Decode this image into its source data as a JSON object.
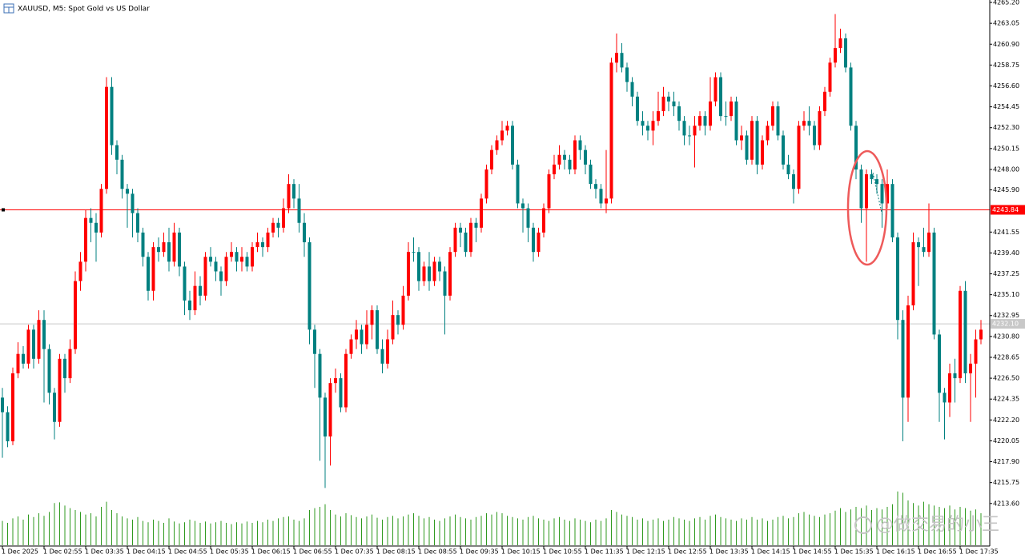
{
  "chart_data": {
    "type": "candlestick",
    "title": "XAUUSD, M5:  Spot Gold vs US Dollar",
    "watermark": "@做交易的小王",
    "up_color": "#ff0000",
    "down_color": "#008080",
    "ylim": [
      4209.3,
      4265.45
    ],
    "yticks": [
      {
        "value": 4265.2,
        "label": "4265.20"
      },
      4263.05,
      {
        "value": 4260.9,
        "label": "4260.90"
      },
      4258.75,
      {
        "value": 4256.6,
        "label": "4256.60"
      },
      4254.45,
      {
        "value": 4252.3,
        "label": "4252.30"
      },
      4250.15,
      {
        "value": 4248,
        "label": "4248.00"
      },
      {
        "value": 4245.9,
        "label": "4245.90"
      },
      4241.55,
      {
        "value": 4239.4,
        "label": "4239.40"
      },
      4237.25,
      {
        "value": 4235.1,
        "label": "4235.10"
      },
      4232.95,
      {
        "value": 4230.8,
        "label": "4230.80"
      },
      4228.65,
      {
        "value": 4226.5,
        "label": "4226.50"
      },
      4224.35,
      {
        "value": 4222.2,
        "label": "4222.20"
      },
      4220.05,
      {
        "value": 4217.9,
        "label": "4217.90"
      },
      4215.75,
      {
        "value": 4213.6,
        "label": "4213.60"
      }
    ],
    "xticks": [
      "1 Dec 2025",
      "1 Dec 02:55",
      "1 Dec 03:35",
      "1 Dec 04:15",
      "1 Dec 04:55",
      "1 Dec 05:35",
      "1 Dec 06:15",
      "1 Dec 06:55",
      "1 Dec 07:35",
      "1 Dec 08:15",
      "1 Dec 08:55",
      "1 Dec 09:35",
      "1 Dec 10:15",
      "1 Dec 10:55",
      "1 Dec 11:35",
      "1 Dec 12:15",
      "1 Dec 12:55",
      "1 Dec 13:35",
      "1 Dec 14:15",
      "1 Dec 14:55",
      "1 Dec 15:35",
      "1 Dec 16:15",
      "1 Dec 16:55",
      "1 Dec 17:35"
    ],
    "price_lines": [
      {
        "value": 4243.84,
        "color": "#ff0000"
      },
      {
        "value": {
          "value": 4232.1,
          "label": "4232.10"
        },
        "color": "#c8c8c8"
      }
    ],
    "open": [
      4224.5,
      4223,
      4220,
      4227,
      4229,
      4228,
      4231.5,
      4228.5,
      4232.5,
      4229.5,
      4225,
      4222,
      4228.5,
      4226.5,
      4229.5,
      4236.5,
      4238.5,
      4243,
      4242.5,
      4241.5,
      4246,
      4256.5,
      4250.5,
      4249,
      4246,
      4245.5,
      4243.5,
      4241.5,
      4239,
      4235.5,
      4240,
      4239.5,
      4240.5,
      4238.5,
      4241.5,
      4238,
      4234.5,
      4233.5,
      4236,
      4235,
      4239,
      4238.5,
      4237.5,
      4236.5,
      4239,
      4239.5,
      4238.5,
      4239,
      4238,
      4240,
      4240.5,
      4240,
      4241.5,
      4242.5,
      4242,
      4244,
      4246.5,
      4245,
      4242.5,
      4240.5,
      4231.5,
      4229,
      4224.5,
      4220.5,
      4226,
      4226.5,
      4223.5,
      4229,
      4230.5,
      4231.5,
      4230,
      4232,
      4233.5,
      4229.5,
      4228,
      4230.5,
      4233,
      4232,
      4235,
      4239.5,
      4239.5,
      4236.5,
      4238,
      4236.5,
      4238.5,
      4237.5,
      4235,
      4239.5,
      4242,
      4241.5,
      4239.5,
      4242.5,
      4242,
      4245,
      4248,
      4250,
      4251,
      4252,
      4252.5,
      4248.5,
      4244.5,
      4244,
      4242,
      4239.5,
      4241.5,
      4244,
      4247.5,
      4248.5,
      4249.5,
      4249,
      4248,
      4251,
      4250,
      4248.5,
      4246.5,
      4246,
      4244.5,
      4245,
      4259,
      4260,
      4258.5,
      4257,
      4255.5,
      4253,
      4252.5,
      4252,
      4253,
      4254,
      4255.5,
      4255,
      4254.5,
      4253,
      4251.5,
      4251.5,
      4252.5,
      4253.5,
      4252.5,
      4255,
      4257.5,
      4253.5,
      4253.5,
      4255,
      4251,
      4251.5,
      4249,
      4253,
      4248.5,
      4251,
      4252.5,
      4254.5,
      4251.5,
      4248.5,
      4247.5,
      4246,
      4252.5,
      4253,
      4252.5,
      4250.5,
      4254,
      4256,
      4259,
      4260.5,
      4261.5,
      4258.5,
      4252.5,
      4248,
      4244,
      4247.5,
      4247,
      4246.5,
      4244.5,
      4246.5,
      4241,
      4232.5,
      4224.5,
      4234,
      4240.5,
      4240,
      4239.5,
      4241.5,
      4231,
      4225,
      4224,
      4227,
      4226.5,
      4235.5,
      4227,
      4228,
      4230.5
    ],
    "high": [
      4225.5,
      4223.6,
      4227.6,
      4230.2,
      4229.8,
      4232,
      4232,
      4233.5,
      4233.5,
      4230,
      4225.5,
      4229,
      4229,
      4230.5,
      4237.5,
      4239.5,
      4243.8,
      4244,
      4243.5,
      4246.5,
      4257.5,
      4257.5,
      4251,
      4249.5,
      4246.5,
      4246,
      4244,
      4242,
      4239.5,
      4240.5,
      4241,
      4241.5,
      4242,
      4242.5,
      4242,
      4238.5,
      4235.5,
      4237.5,
      4237,
      4239.5,
      4240,
      4239,
      4238,
      4239.5,
      4240.5,
      4240,
      4240,
      4239.5,
      4240.5,
      4241.5,
      4241,
      4242,
      4243,
      4243,
      4245,
      4247.5,
      4247,
      4246.5,
      4243.5,
      4241,
      4232,
      4229.5,
      4225,
      4226.5,
      4227.5,
      4227,
      4229.5,
      4231,
      4232.5,
      4232,
      4233.5,
      4234,
      4234,
      4230.5,
      4231.5,
      4234.5,
      4233.5,
      4236,
      4240.5,
      4241,
      4240,
      4238.5,
      4239.5,
      4239,
      4239,
      4238,
      4240,
      4242.5,
      4242.5,
      4242,
      4243,
      4243,
      4245.5,
      4248.5,
      4250.5,
      4251.5,
      4253,
      4253,
      4253,
      4249,
      4245,
      4244.5,
      4242.5,
      4242,
      4244.5,
      4248,
      4249.5,
      4250.5,
      4250,
      4249.5,
      4251.5,
      4251.5,
      4250.5,
      4249,
      4247,
      4246.5,
      4250,
      4259.5,
      4262,
      4261,
      4259,
      4257.5,
      4256,
      4254,
      4253,
      4254,
      4256,
      4256.5,
      4256,
      4256,
      4255,
      4253.5,
      4252.5,
      4253.5,
      4254,
      4254,
      4257.5,
      4258,
      4258,
      4255,
      4255.5,
      4255.5,
      4252.5,
      4252,
      4253.5,
      4253.5,
      4251.5,
      4253,
      4255,
      4255,
      4252,
      4249.5,
      4248,
      4253,
      4254,
      4254.5,
      4253,
      4254.5,
      4256.5,
      4259.5,
      4264,
      4262.5,
      4262,
      4259,
      4253,
      4248.5,
      4248,
      4248,
      4247.5,
      4247,
      4248,
      4247,
      4241.5,
      4233.5,
      4235,
      4241.5,
      4241,
      4242,
      4244.5,
      4242,
      4231.5,
      4225.5,
      4228,
      4228.5,
      4236,
      4236.5,
      4229,
      4231.5,
      4232.5
    ],
    "low": [
      4218.3,
      4219.4,
      4219.6,
      4226.5,
      4227.5,
      4227.5,
      4227.5,
      4228,
      4224,
      4223.8,
      4220.2,
      4221.5,
      4225,
      4226,
      4229,
      4235.5,
      4237.5,
      4240.5,
      4238.5,
      4241,
      4245.5,
      4249.5,
      4247.5,
      4245,
      4242,
      4241,
      4240.5,
      4238,
      4234.5,
      4234.5,
      4238.5,
      4239,
      4237.5,
      4238,
      4237,
      4233,
      4232.5,
      4233,
      4234,
      4234.5,
      4238,
      4236.5,
      4235,
      4236,
      4238.5,
      4237.5,
      4237.5,
      4237.5,
      4237.5,
      4239.5,
      4239,
      4239.5,
      4241,
      4241,
      4241.5,
      4243.5,
      4244,
      4241.5,
      4239,
      4230,
      4225.5,
      4218,
      4215.2,
      4217.5,
      4225,
      4223,
      4223,
      4228.5,
      4229.5,
      4229,
      4229.5,
      4230.5,
      4229,
      4227,
      4227.5,
      4230,
      4231,
      4231.5,
      4234.5,
      4238.5,
      4235.5,
      4236,
      4235.5,
      4236,
      4236.5,
      4231,
      4234.5,
      4239,
      4240,
      4239,
      4239,
      4240.5,
      4241.5,
      4244.5,
      4247.5,
      4249.5,
      4250.5,
      4251.5,
      4248,
      4244,
      4241.5,
      4240.5,
      4238.5,
      4239,
      4241,
      4243.5,
      4247,
      4248,
      4248,
      4247.5,
      4247.5,
      4249,
      4247.5,
      4246,
      4245,
      4244,
      4243.5,
      4244.5,
      4258,
      4258,
      4256,
      4254.5,
      4252.5,
      4251.5,
      4251,
      4250.5,
      4252.5,
      4253.5,
      4254,
      4253.5,
      4252,
      4250.5,
      4250.5,
      4248.2,
      4252,
      4251.5,
      4252,
      4254.5,
      4253,
      4252.5,
      4253,
      4250.5,
      4250,
      4248.5,
      4248.5,
      4247.5,
      4248,
      4250.5,
      4252,
      4251,
      4248,
      4247,
      4244.5,
      4245.5,
      4252,
      4251.5,
      4250,
      4250,
      4253.5,
      4255.5,
      4258.5,
      4260,
      4258,
      4252,
      4247,
      4242.5,
      4238.5,
      4246.5,
      4245.5,
      4242,
      4244,
      4240.5,
      4230.5,
      4220,
      4222,
      4233.5,
      4236,
      4239,
      4239,
      4230.5,
      4222,
      4220.2,
      4222.5,
      4224,
      4226,
      4226,
      4222,
      4224.5,
      4230
    ],
    "close": [
      4223,
      4220,
      4227,
      4229,
      4228,
      4231.5,
      4228.5,
      4232.5,
      4229.5,
      4225,
      4222,
      4228.5,
      4226.5,
      4229.5,
      4236.5,
      4238.5,
      4243,
      4242.5,
      4241.5,
      4246,
      4256.5,
      4250.5,
      4249,
      4246,
      4245.5,
      4243.5,
      4241.5,
      4239,
      4235.5,
      4240,
      4239.5,
      4240.5,
      4238.5,
      4241.5,
      4238,
      4234.5,
      4233.5,
      4236,
      4235,
      4239,
      4238.5,
      4237.5,
      4236.5,
      4239,
      4239.5,
      4238.5,
      4239,
      4238,
      4240,
      4240.5,
      4240,
      4241.5,
      4242.5,
      4242,
      4244,
      4246.5,
      4245,
      4242.5,
      4240.5,
      4231.5,
      4229,
      4224.5,
      4220.5,
      4226,
      4226.5,
      4223.5,
      4229,
      4230.5,
      4231.5,
      4230,
      4232,
      4233.5,
      4229.5,
      4228,
      4230.5,
      4233,
      4232,
      4235,
      4239.5,
      4239.5,
      4236.5,
      4238,
      4236.5,
      4238.5,
      4237.5,
      4235,
      4239.5,
      4242,
      4241.5,
      4239.5,
      4242.5,
      4242,
      4245,
      4248,
      4250,
      4251,
      4252,
      4252.5,
      4248.5,
      4244.5,
      4244,
      4242,
      4239.5,
      4241.5,
      4244,
      4247.5,
      4248.5,
      4249.5,
      4249,
      4248,
      4251,
      4250,
      4248.5,
      4246.5,
      4246,
      4244.5,
      4245,
      4259,
      4260,
      4258.5,
      4257,
      4255.5,
      4253,
      4252.5,
      4252,
      4253,
      4254,
      4255.5,
      4255,
      4254.5,
      4253,
      4251.5,
      4251.5,
      4252.5,
      4253.5,
      4252.5,
      4255,
      4257.5,
      4253.5,
      4253.5,
      4255,
      4251,
      4251.5,
      4249,
      4253,
      4248.5,
      4251,
      4252.5,
      4254.5,
      4251.5,
      4248.5,
      4247.5,
      4246,
      4252.5,
      4253,
      4252.5,
      4250.5,
      4254,
      4256,
      4259,
      4260.5,
      4261.5,
      4258.5,
      4252.5,
      4248,
      4244,
      4247.5,
      4247,
      4246.5,
      4244.5,
      4246.5,
      4241,
      4232.5,
      4224.5,
      4234,
      4240.5,
      4240,
      4239.5,
      4241.5,
      4231,
      4225,
      4224,
      4227,
      4226.5,
      4235.5,
      4227,
      4228,
      4230.5,
      4231.5
    ],
    "volume": {
      "color": "#2f9a1f",
      "ylim": [
        0,
        100
      ],
      "values": [
        38,
        35,
        42,
        45,
        40,
        48,
        44,
        50,
        46,
        52,
        66,
        67,
        62,
        58,
        55,
        52,
        48,
        50,
        45,
        60,
        68,
        55,
        50,
        45,
        42,
        40,
        44,
        38,
        36,
        40,
        38,
        35,
        42,
        37,
        34,
        36,
        40,
        38,
        35,
        37,
        34,
        36,
        38,
        35,
        33,
        36,
        34,
        37,
        35,
        38,
        36,
        40,
        38,
        42,
        44,
        45,
        40,
        38,
        42,
        55,
        58,
        60,
        64,
        55,
        48,
        45,
        50,
        47,
        44,
        42,
        45,
        48,
        43,
        40,
        44,
        46,
        42,
        45,
        48,
        50,
        46,
        42,
        44,
        40,
        38,
        42,
        45,
        48,
        44,
        42,
        40,
        44,
        46,
        50,
        48,
        52,
        50,
        46,
        44,
        42,
        40,
        44,
        46,
        42,
        40,
        38,
        42,
        44,
        40,
        38,
        42,
        40,
        38,
        36,
        40,
        38,
        42,
        55,
        52,
        48,
        46,
        44,
        40,
        42,
        38,
        40,
        42,
        38,
        40,
        44,
        42,
        40,
        38,
        42,
        44,
        40,
        46,
        48,
        44,
        42,
        40,
        38,
        42,
        40,
        44,
        40,
        42,
        38,
        40,
        44,
        46,
        42,
        44,
        50,
        52,
        48,
        46,
        44,
        48,
        50,
        54,
        58,
        52,
        56,
        60,
        58,
        62,
        55,
        58,
        56,
        60,
        64,
        84,
        82,
        70,
        66,
        62,
        68,
        64,
        62,
        60,
        58,
        62,
        56,
        60,
        58,
        54,
        56,
        50
      ]
    }
  }
}
